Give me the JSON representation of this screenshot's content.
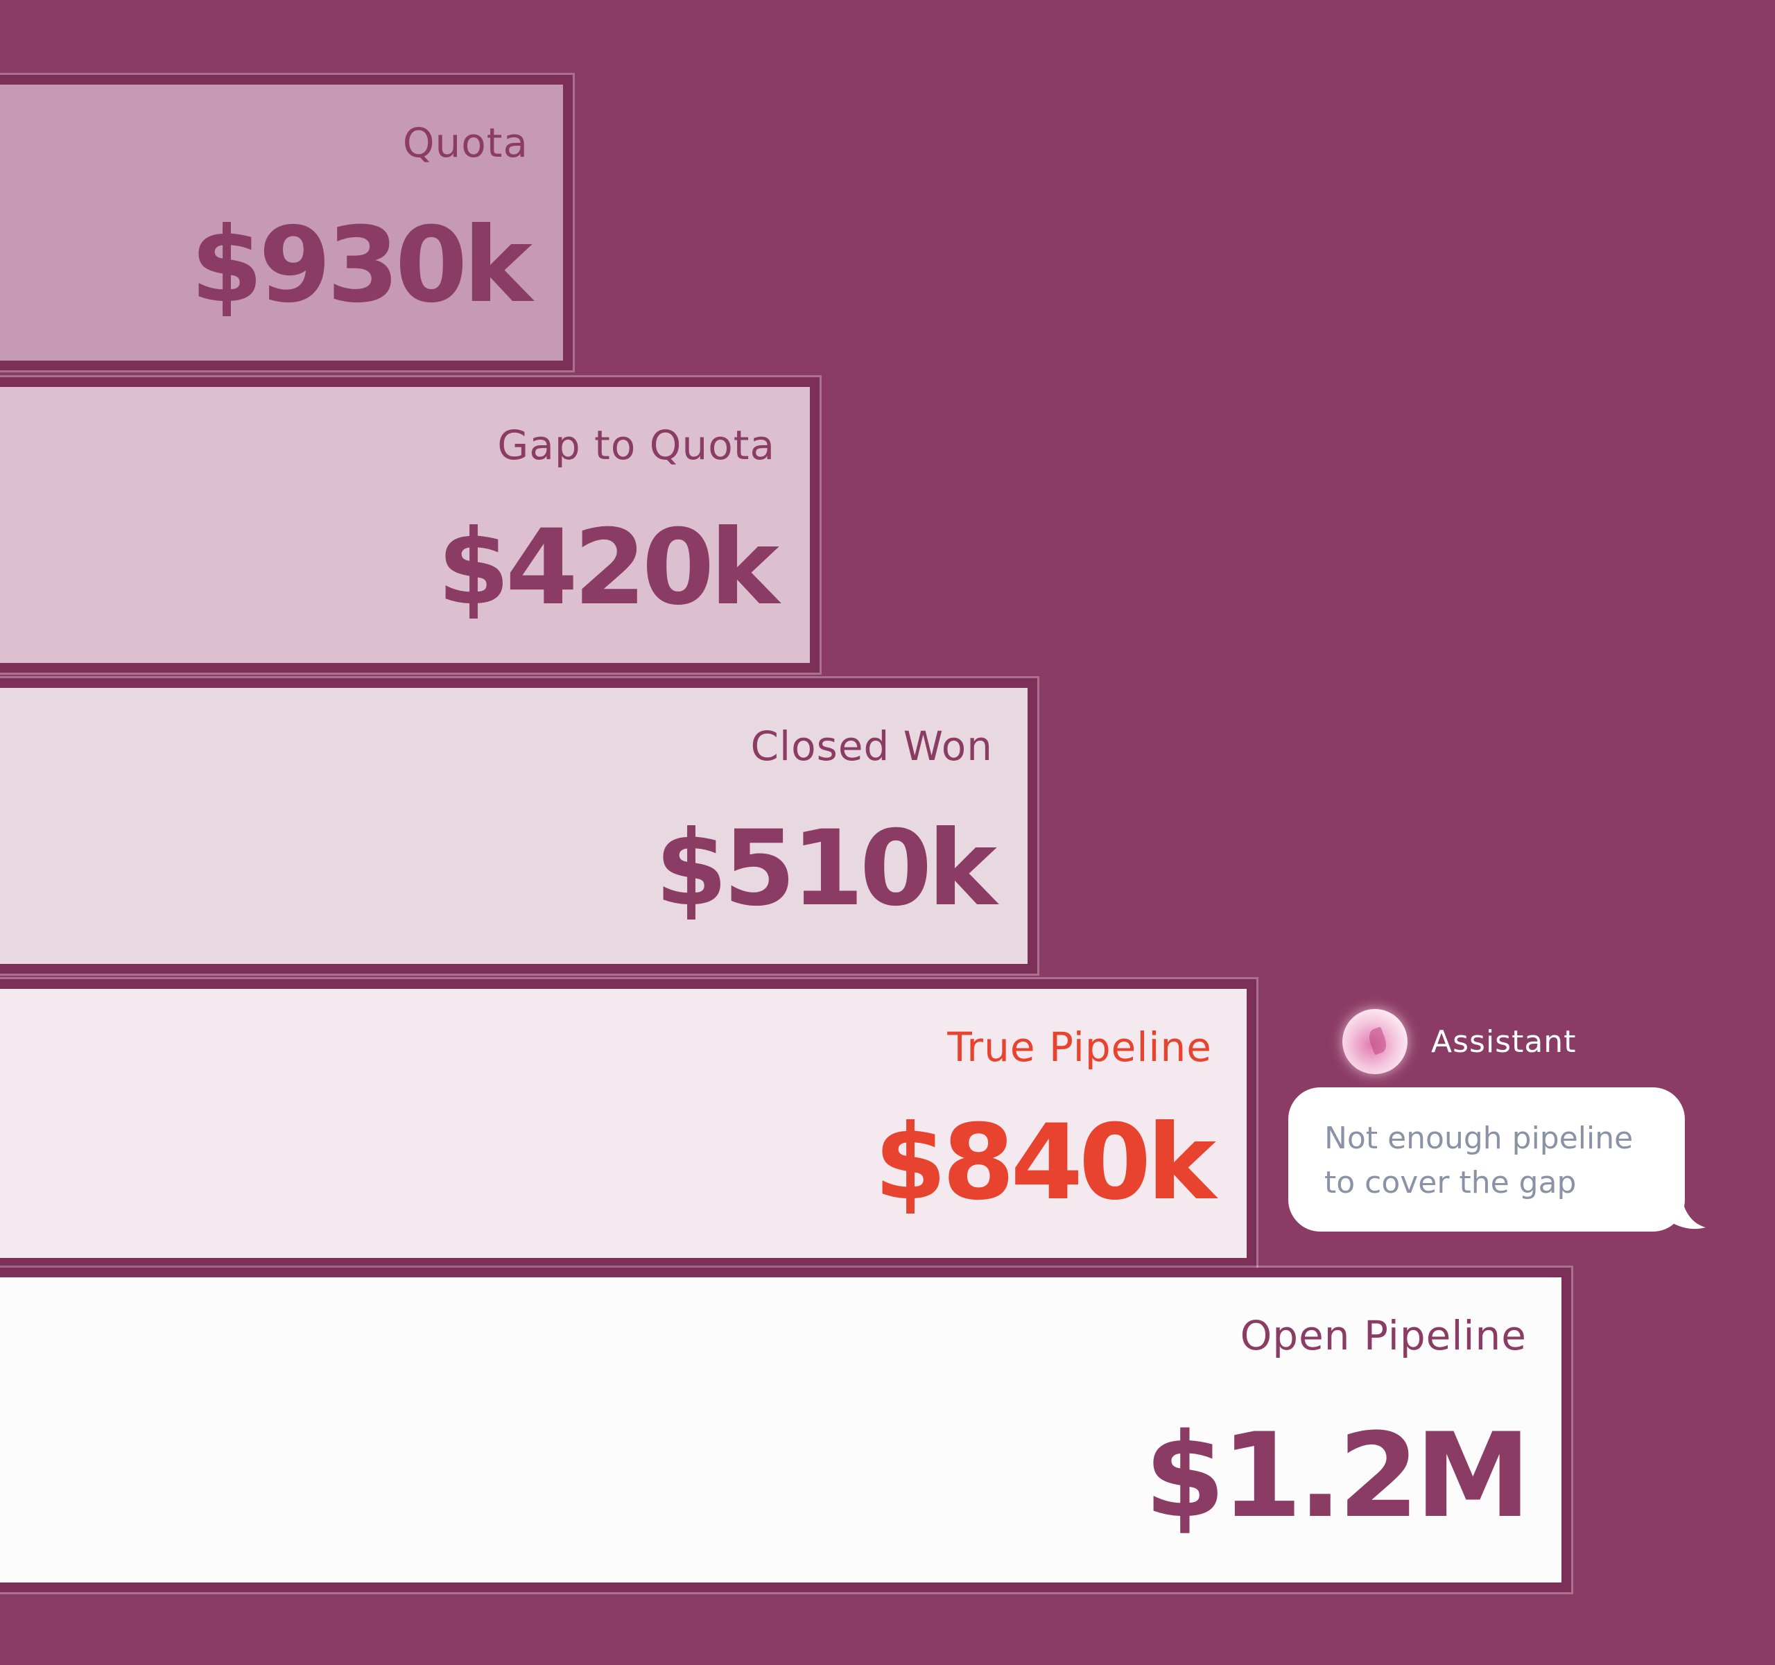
{
  "bars": [
    {
      "label": "Quota",
      "value": "$930k",
      "highlight": false
    },
    {
      "label": "Gap to Quota",
      "value": "$420k",
      "highlight": false
    },
    {
      "label": "Closed Won",
      "value": "$510k",
      "highlight": false
    },
    {
      "label": "True Pipeline",
      "value": "$840k",
      "highlight": true
    },
    {
      "label": "Open Pipeline",
      "value": "$1.2M",
      "highlight": false
    }
  ],
  "assistant": {
    "name": "Assistant",
    "avatar_icon": "assistant-orb-icon",
    "message_line1": "Not enough pipeline",
    "message_line2": "to cover the gap"
  },
  "colors": {
    "background": "#8b3c64",
    "text": "#8b3c64",
    "highlight": "#e8432e",
    "bubble_text": "#8a93a5"
  }
}
